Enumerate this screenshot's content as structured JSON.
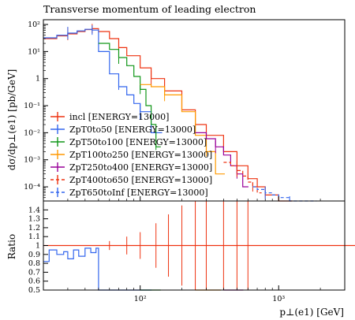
{
  "chart_data": [
    {
      "type": "line",
      "panel": "main",
      "title": "Transverse momentum of leading electron",
      "ylabel": "dσ/dp⊥(e1) [pb/GeV]",
      "xscale": "log",
      "yscale": "log",
      "xlim": [
        20,
        3000
      ],
      "ylim": [
        3e-05,
        150
      ],
      "yticks": [
        {
          "value": 100,
          "label": "10²"
        },
        {
          "value": 10,
          "label": "10¹"
        },
        {
          "value": 1,
          "label": "1"
        },
        {
          "value": 0.1,
          "label": "10⁻¹"
        },
        {
          "value": 0.01,
          "label": "10⁻²"
        },
        {
          "value": 0.001,
          "label": "10⁻³"
        },
        {
          "value": 0.0001,
          "label": "10⁻⁴"
        }
      ],
      "legend_position": "lower-left",
      "series": [
        {
          "name": "incl [ENERGY=13000]",
          "color": "#ee3311",
          "style": "solid",
          "x": [
            20,
            25,
            30,
            35,
            40,
            45,
            50,
            60,
            70,
            80,
            100,
            120,
            150,
            200,
            250,
            300,
            400,
            500,
            600,
            700,
            800,
            1000
          ],
          "y": [
            30,
            38,
            45,
            55,
            65,
            70,
            55,
            30,
            14,
            7,
            2.5,
            1.0,
            0.35,
            0.07,
            0.02,
            0.008,
            0.002,
            0.0006,
            0.0002,
            0.0001,
            5e-05,
            3e-05
          ]
        },
        {
          "name": "ZpT0to50 [ENERGY=13000]",
          "color": "#3366ee",
          "style": "solid",
          "x": [
            20,
            25,
            30,
            35,
            40,
            45,
            50,
            60,
            70,
            80,
            90,
            100,
            120
          ],
          "y": [
            32,
            40,
            48,
            58,
            66,
            62,
            10,
            1.5,
            0.5,
            0.25,
            0.12,
            0.06,
            0.01
          ]
        },
        {
          "name": "ZpT50to100 [ENERGY=13000]",
          "color": "#109618",
          "style": "solid",
          "x": [
            50,
            60,
            70,
            80,
            90,
            100,
            110,
            120,
            130
          ],
          "y": [
            20,
            12,
            6,
            3,
            1.2,
            0.4,
            0.1,
            0.02,
            0.003
          ]
        },
        {
          "name": "ZpT100to250 [ENERGY=13000]",
          "color": "#ff9900",
          "style": "solid",
          "x": [
            100,
            120,
            150,
            200,
            250,
            300,
            350
          ],
          "y": [
            0.6,
            0.5,
            0.25,
            0.06,
            0.008,
            0.002,
            0.0003
          ]
        },
        {
          "name": "ZpT250to400 [ENERGY=13000]",
          "color": "#990099",
          "style": "solid",
          "x": [
            250,
            300,
            350,
            400,
            450,
            500,
            550
          ],
          "y": [
            0.01,
            0.006,
            0.003,
            0.0015,
            0.0006,
            0.0003,
            0.0001
          ]
        },
        {
          "name": "ZpT400to650 [ENERGY=13000]",
          "color": "#ee3311",
          "style": "dashed",
          "x": [
            400,
            450,
            500,
            550,
            600,
            650,
            700
          ],
          "y": [
            0.0008,
            0.0006,
            0.0004,
            0.00025,
            0.00015,
            0.0001,
            6e-05
          ]
        },
        {
          "name": "ZpT650toInf [ENERGY=13000]",
          "color": "#3366ee",
          "style": "dashed",
          "x": [
            650,
            700,
            800,
            900,
            1000,
            1200,
            1500
          ],
          "y": [
            0.0001,
            8e-05,
            6e-05,
            5e-05,
            4e-05,
            3e-05,
            3e-05
          ]
        }
      ]
    },
    {
      "type": "line",
      "panel": "ratio",
      "ylabel": "Ratio",
      "xlabel": "p⊥(e1) [GeV]",
      "xscale": "log",
      "xlim": [
        20,
        3000
      ],
      "ylim": [
        0.5,
        1.5
      ],
      "yticks": [
        {
          "value": 0.5,
          "label": "0.5"
        },
        {
          "value": 0.6,
          "label": "0.6"
        },
        {
          "value": 0.7,
          "label": "0.7"
        },
        {
          "value": 0.8,
          "label": "0.8"
        },
        {
          "value": 0.9,
          "label": "0.9"
        },
        {
          "value": 1.0,
          "label": "1"
        },
        {
          "value": 1.1,
          "label": "1.1"
        },
        {
          "value": 1.2,
          "label": "1.2"
        },
        {
          "value": 1.3,
          "label": "1.3"
        },
        {
          "value": 1.4,
          "label": "1.4"
        }
      ],
      "xticks": [
        {
          "value": 100,
          "label": "10²"
        },
        {
          "value": 1000,
          "label": "10³"
        }
      ],
      "series": [
        {
          "name": "incl [ENERGY=13000]",
          "color": "#ee3311",
          "style": "solid",
          "x": [
            20,
            3000
          ],
          "y": [
            1.0,
            1.0
          ],
          "error_x": [
            60,
            80,
            100,
            130,
            160,
            200,
            250,
            300,
            400,
            500,
            600
          ],
          "error_half": [
            0.05,
            0.1,
            0.15,
            0.25,
            0.35,
            0.45,
            0.5,
            0.5,
            0.5,
            0.5,
            0.5
          ]
        },
        {
          "name": "ZpT0to50 [ENERGY=13000]",
          "color": "#3366ee",
          "style": "solid",
          "x": [
            20,
            22,
            25,
            28,
            30,
            33,
            36,
            40,
            44,
            48,
            50,
            55,
            60,
            70,
            80,
            90,
            100,
            110
          ],
          "y": [
            0.82,
            0.95,
            0.9,
            0.93,
            0.85,
            0.95,
            0.88,
            0.97,
            0.92,
            0.97,
            0.5,
            0.5,
            0.5,
            0.5,
            0.5,
            0.5,
            0.5,
            0.5
          ]
        },
        {
          "name": "ZpT50to100 [ENERGY=13000]",
          "color": "#109618",
          "style": "solid",
          "x": [
            100,
            110,
            120,
            130
          ],
          "y": [
            0.5,
            0.5,
            0.5,
            0.5
          ]
        },
        {
          "name": "ZpT100to250 [ENERGY=13000]",
          "color": "#ff9900",
          "style": "solid",
          "x": [
            250,
            280,
            320,
            350
          ],
          "y": [
            0.5,
            0.5,
            0.5,
            0.5
          ]
        },
        {
          "name": "ZpT250to400 [ENERGY=13000]",
          "color": "#990099",
          "style": "solid",
          "x": [
            400,
            450,
            500
          ],
          "y": [
            0.5,
            0.5,
            0.5
          ]
        }
      ]
    }
  ]
}
